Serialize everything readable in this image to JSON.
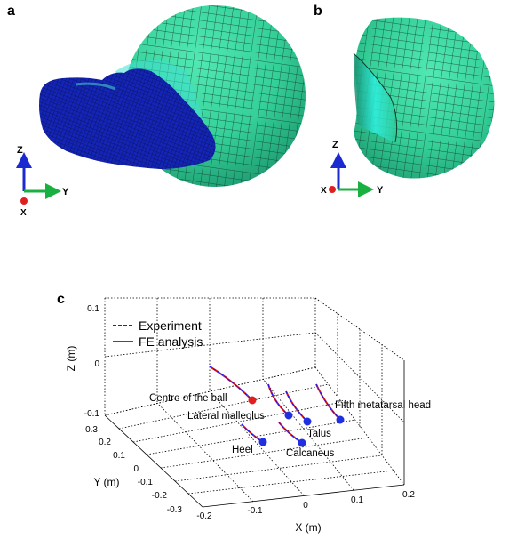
{
  "panels": {
    "a": {
      "letter": "a"
    },
    "b": {
      "letter": "b"
    },
    "c": {
      "letter": "c"
    }
  },
  "triad": {
    "a": {
      "z": "Z",
      "y": "Y",
      "x": "X"
    },
    "b": {
      "z": "Z",
      "y": "Y",
      "x": "X"
    }
  },
  "colors": {
    "ball_green": "#3cd8a0",
    "shoe_blue": "#1424b4",
    "experiment": "#1a1aff",
    "fe": "#e01010",
    "marker_red": "#e02020",
    "marker_blue": "#2030e0"
  },
  "chart_data": {
    "type": "line3d",
    "title": "",
    "xlabel": "X (m)",
    "ylabel": "Y (m)",
    "zlabel": "Z (m)",
    "x_ticks": [
      "-0.2",
      "-0.1",
      "0",
      "0.1",
      "0.2"
    ],
    "y_ticks": [
      "0.3",
      "0.2",
      "0.1",
      "0",
      "-0.1",
      "-0.2",
      "-0.3"
    ],
    "z_ticks": [
      "0.1",
      "0",
      "-0.1"
    ],
    "xlim": [
      -0.2,
      0.2
    ],
    "ylim": [
      -0.3,
      0.3
    ],
    "zlim": [
      -0.1,
      0.1
    ],
    "legend": {
      "placement": "top-left",
      "entries": [
        {
          "name": "Experiment",
          "style": "dashed"
        },
        {
          "name": "FE analysis",
          "style": "solid"
        }
      ]
    },
    "markers": [
      {
        "label": "Centre of the ball",
        "x": -0.03,
        "y": 0.05,
        "z": -0.06
      },
      {
        "label": "Lateral malleolus",
        "x": 0.0,
        "y": 0.0,
        "z": -0.09
      },
      {
        "label": "Talus",
        "x": 0.04,
        "y": -0.02,
        "z": -0.09
      },
      {
        "label": "Fifth metatarsal head",
        "x": 0.1,
        "y": 0.08,
        "z": -0.09
      },
      {
        "label": "Heel",
        "x": -0.08,
        "y": -0.13,
        "z": -0.08
      },
      {
        "label": "Calcaneus",
        "x": 0.02,
        "y": -0.1,
        "z": -0.1
      }
    ]
  }
}
